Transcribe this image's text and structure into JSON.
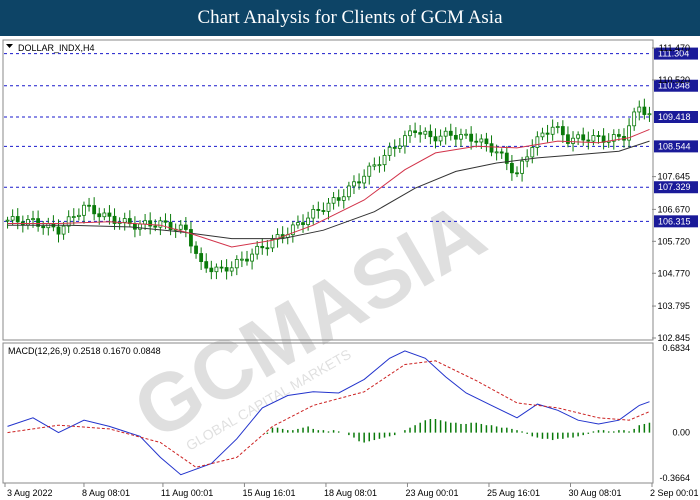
{
  "header": {
    "title": "Chart Analysis for Clients of GCM Asia"
  },
  "chart_data": [
    {
      "type": "candlestick",
      "label": "DOLLAR_INDX,H4",
      "y_axis_ticks": [
        "111.470",
        "110.520",
        "107.645",
        "106.670",
        "105.720",
        "104.770",
        "103.795",
        "102.845"
      ],
      "ylim": [
        102.845,
        111.47
      ],
      "levels": [
        111.304,
        110.348,
        109.418,
        108.544,
        107.329,
        106.315
      ],
      "level_labels": [
        "111.304",
        "110.348",
        "109.418",
        "108.544",
        "107.329",
        "106.315"
      ],
      "x_axis_ticks": [
        "3 Aug 2022",
        "8 Aug 08:01",
        "11 Aug 00:01",
        "15 Aug 16:01",
        "18 Aug 08:01",
        "23 Aug 00:01",
        "25 Aug 16:01",
        "30 Aug 08:01",
        "2 Sep 00:01"
      ],
      "price_path": [
        [
          0,
          106.35
        ],
        [
          5,
          106.3
        ],
        [
          10,
          106.05
        ],
        [
          15,
          106.75
        ],
        [
          20,
          106.4
        ],
        [
          25,
          106.2
        ],
        [
          30,
          106.25
        ],
        [
          35,
          106.05
        ],
        [
          38,
          105.0
        ],
        [
          42,
          104.85
        ],
        [
          46,
          105.15
        ],
        [
          50,
          105.55
        ],
        [
          55,
          106.0
        ],
        [
          60,
          106.55
        ],
        [
          65,
          107.0
        ],
        [
          70,
          107.7
        ],
        [
          75,
          108.4
        ],
        [
          80,
          109.05
        ],
        [
          83,
          108.8
        ],
        [
          87,
          108.9
        ],
        [
          92,
          108.75
        ],
        [
          96,
          108.4
        ],
        [
          100,
          107.7
        ],
        [
          103,
          108.6
        ],
        [
          107,
          109.15
        ],
        [
          110,
          108.75
        ],
        [
          114,
          108.8
        ],
        [
          118,
          108.75
        ],
        [
          121,
          108.85
        ],
        [
          124,
          109.75
        ],
        [
          126,
          109.45
        ]
      ],
      "ma_fast": [
        [
          0,
          106.25
        ],
        [
          10,
          106.25
        ],
        [
          20,
          106.3
        ],
        [
          30,
          106.2
        ],
        [
          36,
          105.95
        ],
        [
          44,
          105.55
        ],
        [
          52,
          105.75
        ],
        [
          60,
          106.2
        ],
        [
          70,
          106.95
        ],
        [
          78,
          107.85
        ],
        [
          84,
          108.35
        ],
        [
          92,
          108.55
        ],
        [
          100,
          108.5
        ],
        [
          108,
          108.7
        ],
        [
          116,
          108.65
        ],
        [
          122,
          108.8
        ],
        [
          126,
          109.05
        ]
      ],
      "ma_slow": [
        [
          0,
          106.2
        ],
        [
          12,
          106.2
        ],
        [
          24,
          106.15
        ],
        [
          34,
          106.0
        ],
        [
          44,
          105.8
        ],
        [
          54,
          105.8
        ],
        [
          62,
          106.05
        ],
        [
          72,
          106.6
        ],
        [
          80,
          107.3
        ],
        [
          88,
          107.8
        ],
        [
          96,
          108.05
        ],
        [
          104,
          108.2
        ],
        [
          112,
          108.3
        ],
        [
          120,
          108.4
        ],
        [
          126,
          108.7
        ]
      ]
    },
    {
      "type": "bar",
      "label": "MACD(12,26,9) 0.2518 0.1670 0.0848",
      "y_axis_ticks": [
        "0.6834",
        "0.00",
        "-0.3664"
      ],
      "ylim": [
        -0.3664,
        0.6834
      ],
      "macd_line": [
        [
          0,
          0.05
        ],
        [
          5,
          0.12
        ],
        [
          10,
          0.0
        ],
        [
          15,
          0.1
        ],
        [
          20,
          0.05
        ],
        [
          26,
          -0.03
        ],
        [
          30,
          -0.2
        ],
        [
          34,
          -0.34
        ],
        [
          40,
          -0.25
        ],
        [
          45,
          -0.05
        ],
        [
          50,
          0.2
        ],
        [
          55,
          0.3
        ],
        [
          60,
          0.33
        ],
        [
          65,
          0.32
        ],
        [
          70,
          0.43
        ],
        [
          75,
          0.6
        ],
        [
          78,
          0.66
        ],
        [
          82,
          0.6
        ],
        [
          86,
          0.45
        ],
        [
          90,
          0.32
        ],
        [
          95,
          0.22
        ],
        [
          100,
          0.12
        ],
        [
          104,
          0.23
        ],
        [
          108,
          0.18
        ],
        [
          112,
          0.1
        ],
        [
          116,
          0.07
        ],
        [
          120,
          0.1
        ],
        [
          124,
          0.22
        ],
        [
          126,
          0.25
        ]
      ],
      "signal_line": [
        [
          0,
          0.0
        ],
        [
          10,
          0.06
        ],
        [
          20,
          0.03
        ],
        [
          30,
          -0.08
        ],
        [
          37,
          -0.28
        ],
        [
          45,
          -0.2
        ],
        [
          52,
          0.05
        ],
        [
          60,
          0.22
        ],
        [
          70,
          0.33
        ],
        [
          78,
          0.55
        ],
        [
          84,
          0.58
        ],
        [
          92,
          0.42
        ],
        [
          100,
          0.24
        ],
        [
          108,
          0.2
        ],
        [
          116,
          0.12
        ],
        [
          122,
          0.1
        ],
        [
          126,
          0.17
        ]
      ],
      "histogram": [
        -0.01,
        0.04,
        0.04,
        0.03,
        0.02,
        0.02,
        0.03,
        0.04,
        0.05,
        0.03,
        0.02,
        0.02,
        0.01,
        0.02,
        0.01,
        0.0,
        -0.02,
        -0.04,
        -0.07,
        -0.08,
        -0.07,
        -0.06,
        -0.05,
        -0.04,
        -0.03,
        -0.02,
        0.0,
        0.02,
        0.04,
        0.06,
        0.08,
        0.1,
        0.11,
        0.11,
        0.1,
        0.09,
        0.08,
        0.08,
        0.07,
        0.07,
        0.08,
        0.08,
        0.07,
        0.06,
        0.06,
        0.05,
        0.04,
        0.04,
        0.03,
        0.02,
        0.01,
        -0.01,
        -0.03,
        -0.04,
        -0.05,
        -0.05,
        -0.06,
        -0.05,
        -0.05,
        -0.04,
        -0.04,
        -0.03,
        -0.02,
        -0.01,
        0.01,
        0.02,
        0.02,
        0.01,
        0.01,
        0.02,
        0.02,
        0.01,
        0.03,
        0.06,
        0.07,
        0.08
      ]
    }
  ],
  "watermark": {
    "text": "GCMASIA",
    "tagline": "GLOBAL CAPITAL MARKETS"
  },
  "colors": {
    "header_bg": "#0d4466",
    "level_line": "#1a1acc",
    "level_box": "#1a1a99",
    "candle": "#0a7a0a",
    "ma_fast": "#d2334a",
    "ma_slow": "#333333",
    "macd": "#2233cc",
    "signal": "#cc2222",
    "histogram": "#0a7a0a",
    "grid": "#cfcfcf"
  }
}
